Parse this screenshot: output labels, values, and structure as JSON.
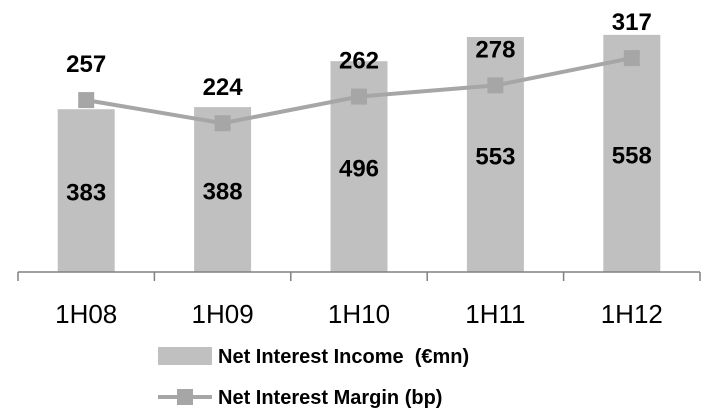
{
  "chart_data": {
    "type": "bar",
    "categories": [
      "1H08",
      "1H09",
      "1H10",
      "1H11",
      "1H12"
    ],
    "series": [
      {
        "name": "Net Interest Income  (€mn)",
        "type": "bar",
        "values": [
          383,
          388,
          496,
          553,
          558
        ]
      },
      {
        "name": "Net Interest Margin (bp)",
        "type": "line",
        "values": [
          257,
          224,
          262,
          278,
          317
        ]
      }
    ],
    "title": "",
    "xlabel": "",
    "ylabel": "",
    "legend_position": "bottom",
    "grid": false,
    "colors": {
      "bar": "#c0c0c0",
      "line": "#a6a6a6",
      "axis": "#808080"
    }
  }
}
